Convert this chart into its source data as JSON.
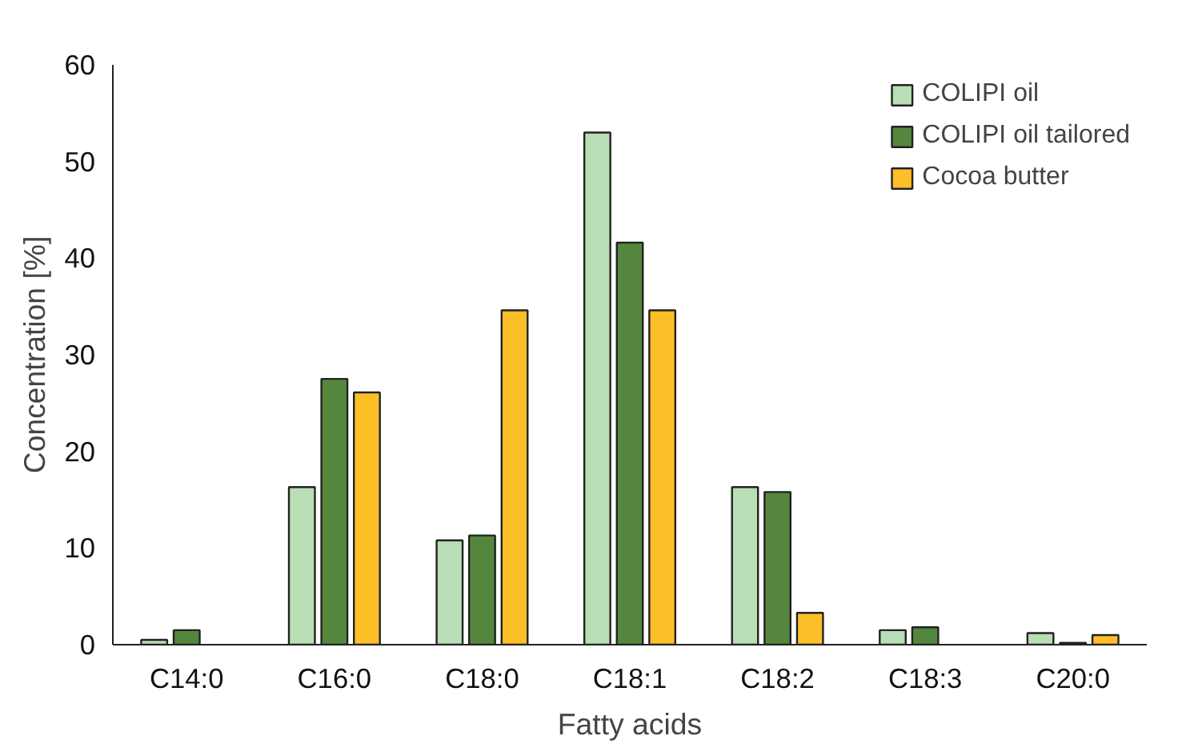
{
  "chart_data": {
    "type": "bar",
    "xlabel": "Fatty acids",
    "ylabel": "Concentration [%]",
    "categories": [
      "C14:0",
      "C16:0",
      "C18:0",
      "C18:1",
      "C18:2",
      "C18:3",
      "C20:0"
    ],
    "series": [
      {
        "name": "COLIPI oil",
        "color": "#b9ddb4",
        "values": [
          0.5,
          16.3,
          10.8,
          53.0,
          16.3,
          1.5,
          1.2
        ]
      },
      {
        "name": "COLIPI oil tailored",
        "color": "#54873d",
        "values": [
          1.5,
          27.5,
          11.3,
          41.6,
          15.8,
          1.8,
          0.2
        ]
      },
      {
        "name": "Cocoa butter",
        "color": "#fcbf27",
        "values": [
          null,
          26.1,
          34.6,
          34.6,
          3.3,
          null,
          1.0
        ]
      }
    ],
    "ylim": [
      0,
      60
    ],
    "yticks": [
      0,
      10,
      20,
      30,
      40,
      50,
      60
    ],
    "grid": false,
    "legend": "top right"
  }
}
